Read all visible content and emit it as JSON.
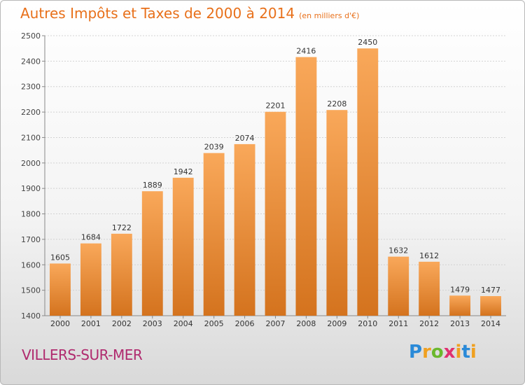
{
  "header": {
    "title": "Autres Impôts et Taxes de 2000 à 2014",
    "subtitle": "(en milliers d'€)"
  },
  "footer": {
    "city": "VILLERS-SUR-MER",
    "brand": "Proxiti"
  },
  "colors": {
    "bar_light": "#f7a24f",
    "bar_dark": "#d4731e",
    "title": "#e8701a",
    "city": "#b02a6e"
  },
  "chart_data": {
    "type": "bar",
    "title": "Autres Impôts et Taxes de 2000 à 2014",
    "subtitle": "(en milliers d'€)",
    "xlabel": "",
    "ylabel": "",
    "categories": [
      "2000",
      "2001",
      "2002",
      "2003",
      "2004",
      "2005",
      "2006",
      "2007",
      "2008",
      "2009",
      "2010",
      "2011",
      "2012",
      "2013",
      "2014"
    ],
    "values": [
      1605,
      1684,
      1722,
      1889,
      1942,
      2039,
      2074,
      2201,
      2416,
      2208,
      2450,
      1632,
      1612,
      1479,
      1477
    ],
    "ylim": [
      1400,
      2500
    ],
    "yticks": [
      1400,
      1500,
      1600,
      1700,
      1800,
      1900,
      2000,
      2100,
      2200,
      2300,
      2400,
      2500
    ],
    "grid": true,
    "data_labels": true
  }
}
